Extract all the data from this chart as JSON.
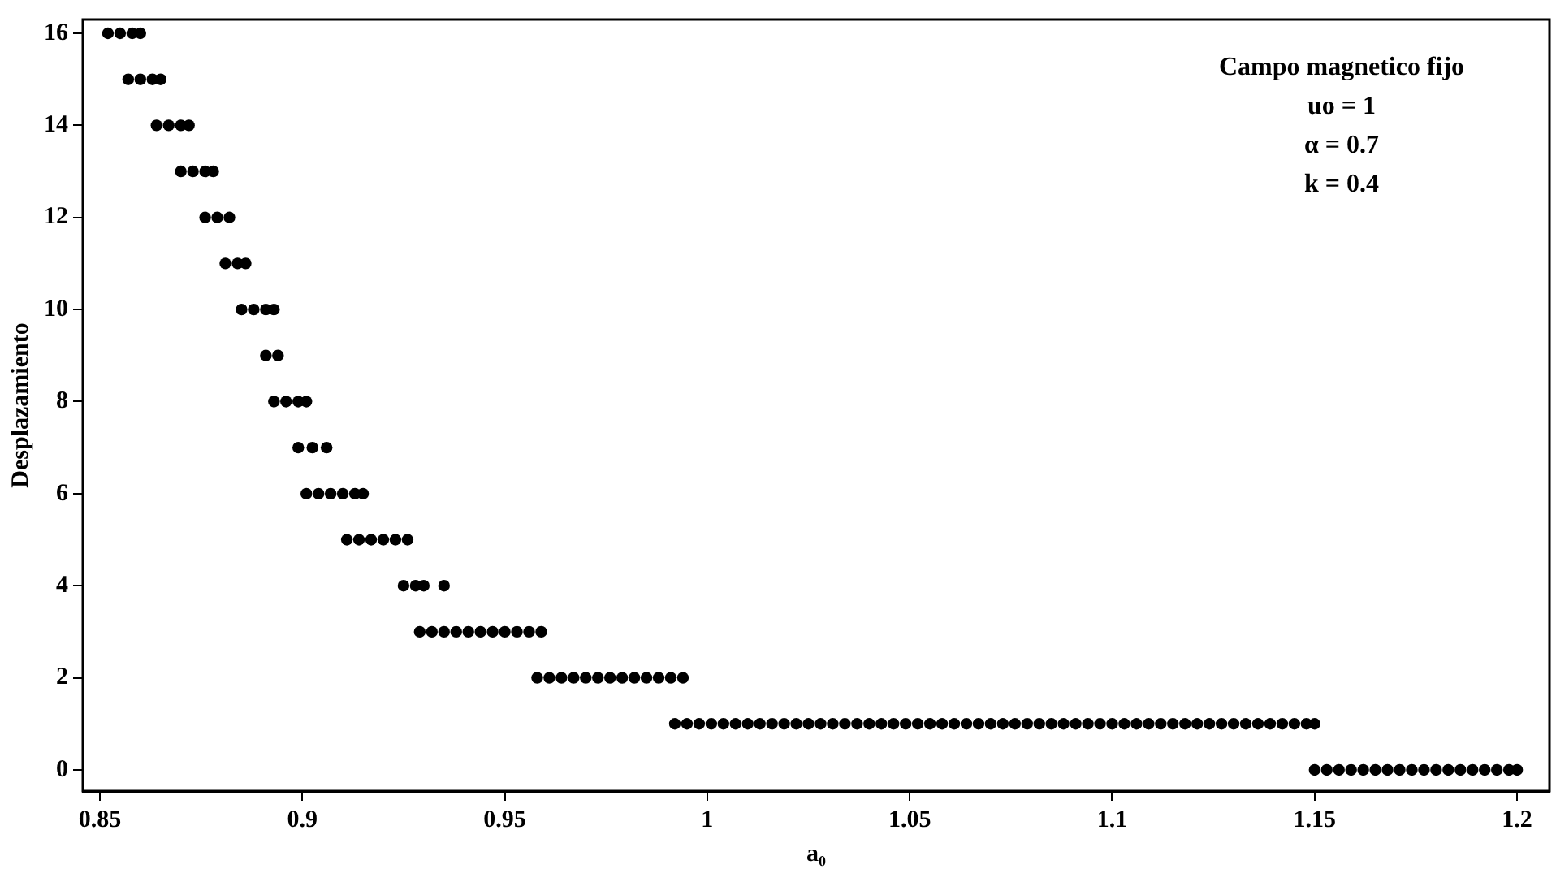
{
  "chart_data": {
    "type": "scatter",
    "xlabel": "a₀",
    "ylabel": "Desplazamiento",
    "annotations": [
      "Campo magnetico fijo",
      "uo = 1",
      "α = 0.7",
      "k = 0.4"
    ],
    "xlim": [
      0.8458,
      1.208
    ],
    "ylim": [
      -0.46,
      16.3
    ],
    "xticks": [
      0.85,
      0.9,
      0.95,
      1,
      1.05,
      1.1,
      1.15,
      1.2
    ],
    "yticks": [
      0,
      2,
      4,
      6,
      8,
      10,
      12,
      14,
      16
    ],
    "grid": false,
    "legend": false,
    "marker": "circle",
    "series": [
      {
        "color": "#000000",
        "x": [
          0.852,
          0.855,
          0.858,
          0.86
        ],
        "values": [
          16,
          16,
          16,
          16
        ]
      },
      {
        "color": "#000000",
        "x": [
          0.857,
          0.86,
          0.863,
          0.865
        ],
        "values": [
          15,
          15,
          15,
          15
        ]
      },
      {
        "color": "#000000",
        "x": [
          0.864,
          0.867,
          0.87,
          0.872
        ],
        "values": [
          14,
          14,
          14,
          14
        ]
      },
      {
        "color": "#000000",
        "x": [
          0.87,
          0.873,
          0.876,
          0.878
        ],
        "values": [
          13,
          13,
          13,
          13
        ]
      },
      {
        "color": "#000000",
        "x": [
          0.876,
          0.879,
          0.882
        ],
        "values": [
          12,
          12,
          12
        ]
      },
      {
        "color": "#000000",
        "x": [
          0.881,
          0.884,
          0.886
        ],
        "values": [
          11,
          11,
          11
        ]
      },
      {
        "color": "#000000",
        "x": [
          0.885,
          0.888,
          0.891,
          0.893
        ],
        "values": [
          10,
          10,
          10,
          10
        ]
      },
      {
        "color": "#000000",
        "x": [
          0.891,
          0.894
        ],
        "values": [
          9,
          9
        ]
      },
      {
        "color": "#000000",
        "x": [
          0.893,
          0.896,
          0.899,
          0.901
        ],
        "values": [
          8,
          8,
          8,
          8
        ]
      },
      {
        "color": "#000000",
        "x": [
          0.899,
          0.9025,
          0.906
        ],
        "values": [
          7,
          7,
          7
        ]
      },
      {
        "color": "#000000",
        "x": [
          0.901,
          0.904,
          0.907,
          0.91,
          0.913,
          0.915
        ],
        "values": [
          6,
          6,
          6,
          6,
          6,
          6
        ]
      },
      {
        "color": "#000000",
        "x": [
          0.911,
          0.914,
          0.917,
          0.92,
          0.923,
          0.926
        ],
        "values": [
          5,
          5,
          5,
          5,
          5,
          5
        ]
      },
      {
        "color": "#000000",
        "x": [
          0.925,
          0.928,
          0.93,
          0.935
        ],
        "values": [
          4,
          4,
          4,
          4
        ]
      },
      {
        "color": "#000000",
        "x": [
          0.929,
          0.932,
          0.935,
          0.938,
          0.941,
          0.944,
          0.947,
          0.95,
          0.953,
          0.956,
          0.959
        ],
        "values": [
          3,
          3,
          3,
          3,
          3,
          3,
          3,
          3,
          3,
          3,
          3
        ]
      },
      {
        "color": "#000000",
        "x": [
          0.958,
          0.961,
          0.964,
          0.967,
          0.97,
          0.973,
          0.976,
          0.979,
          0.982,
          0.985,
          0.988,
          0.991,
          0.994
        ],
        "values": [
          2,
          2,
          2,
          2,
          2,
          2,
          2,
          2,
          2,
          2,
          2,
          2,
          2
        ]
      },
      {
        "color": "#000000",
        "x": [
          0.992,
          0.995,
          0.998,
          1.001,
          1.004,
          1.007,
          1.01,
          1.013,
          1.016,
          1.019,
          1.022,
          1.025,
          1.028,
          1.031,
          1.034,
          1.037,
          1.04,
          1.043,
          1.046,
          1.049,
          1.052,
          1.055,
          1.058,
          1.061,
          1.064,
          1.067,
          1.07,
          1.073,
          1.076,
          1.079,
          1.082,
          1.085,
          1.088,
          1.091,
          1.094,
          1.097,
          1.1,
          1.103,
          1.106,
          1.109,
          1.112,
          1.115,
          1.118,
          1.121,
          1.124,
          1.127,
          1.13,
          1.133,
          1.136,
          1.139,
          1.142,
          1.145,
          1.148,
          1.15
        ],
        "values": [
          1,
          1,
          1,
          1,
          1,
          1,
          1,
          1,
          1,
          1,
          1,
          1,
          1,
          1,
          1,
          1,
          1,
          1,
          1,
          1,
          1,
          1,
          1,
          1,
          1,
          1,
          1,
          1,
          1,
          1,
          1,
          1,
          1,
          1,
          1,
          1,
          1,
          1,
          1,
          1,
          1,
          1,
          1,
          1,
          1,
          1,
          1,
          1,
          1,
          1,
          1,
          1,
          1,
          1
        ]
      },
      {
        "color": "#000000",
        "x": [
          1.15,
          1.153,
          1.156,
          1.159,
          1.162,
          1.165,
          1.168,
          1.171,
          1.174,
          1.177,
          1.18,
          1.183,
          1.186,
          1.189,
          1.192,
          1.195,
          1.198,
          1.2
        ],
        "values": [
          0,
          0,
          0,
          0,
          0,
          0,
          0,
          0,
          0,
          0,
          0,
          0,
          0,
          0,
          0,
          0,
          0,
          0
        ]
      }
    ]
  }
}
